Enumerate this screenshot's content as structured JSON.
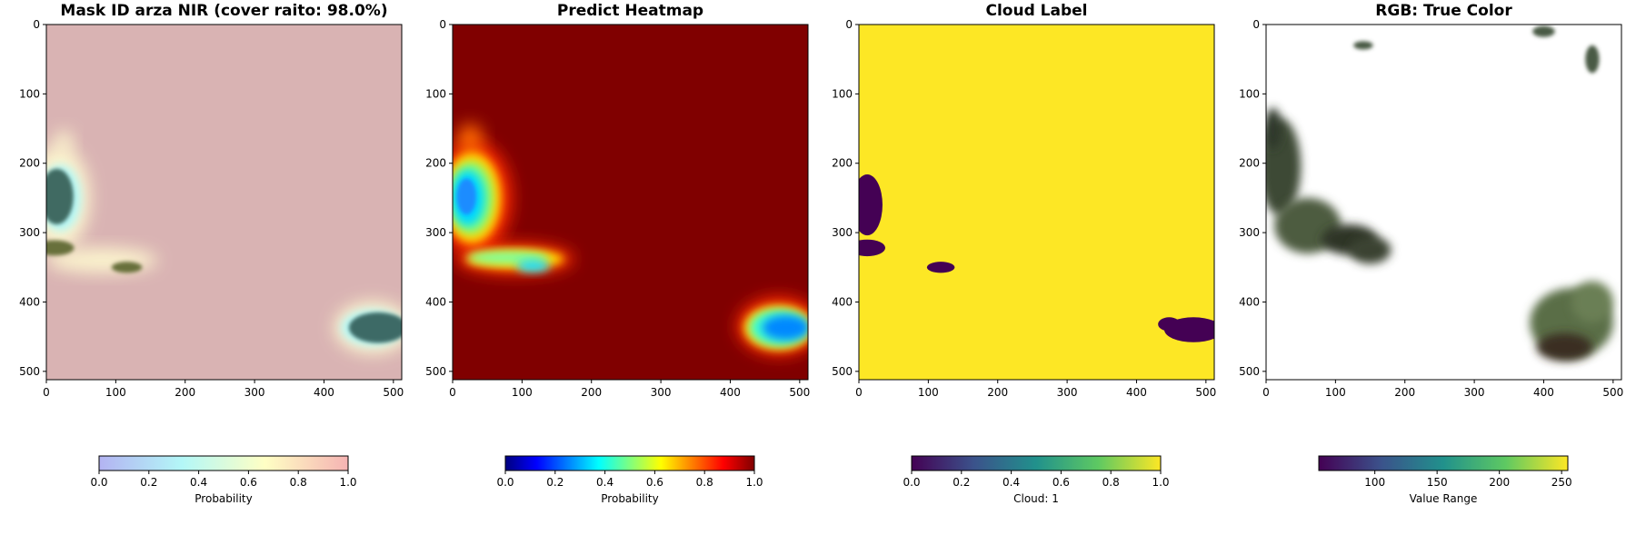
{
  "chart_data": [
    {
      "type": "heatmap",
      "title": "Mask ID arza NIR (cover raito: 98.0%)",
      "xlim": [
        0,
        512
      ],
      "ylim": [
        512,
        0
      ],
      "xticks": [
        "0",
        "100",
        "200",
        "300",
        "400",
        "500"
      ],
      "yticks": [
        "0",
        "100",
        "200",
        "300",
        "400",
        "500"
      ],
      "background_color": "#d9b3b3",
      "colorbar": {
        "label": "Probability",
        "range": [
          0,
          1
        ],
        "ticks": [
          "0.0",
          "0.2",
          "0.4",
          "0.6",
          "0.8",
          "1.0"
        ],
        "colors": [
          "#b3b3f2",
          "#b3f7f7",
          "#ffffc4",
          "#f5b3b3"
        ]
      },
      "regions": [
        {
          "name": "left-edge blob",
          "x": 15,
          "y": 248,
          "rx": 24,
          "ry": 40
        },
        {
          "name": "left strip",
          "x": 12,
          "y": 322,
          "rx": 28,
          "ry": 11
        },
        {
          "name": "small blob",
          "x": 116,
          "y": 350,
          "rx": 22,
          "ry": 8
        },
        {
          "name": "bottom-right blob",
          "x": 478,
          "y": 437,
          "rx": 42,
          "ry": 22
        }
      ]
    },
    {
      "type": "heatmap",
      "title": "Predict Heatmap",
      "xlim": [
        0,
        512
      ],
      "ylim": [
        512,
        0
      ],
      "xticks": [
        "0",
        "100",
        "200",
        "300",
        "400",
        "500"
      ],
      "yticks": [
        "0",
        "100",
        "200",
        "300",
        "400",
        "500"
      ],
      "background_color": "#800000",
      "colorbar": {
        "label": "Probability",
        "range": [
          0,
          1
        ],
        "ticks": [
          "0.0",
          "0.2",
          "0.4",
          "0.6",
          "0.8",
          "1.0"
        ],
        "colors": [
          "#00007f",
          "#0000ff",
          "#007fff",
          "#00ffff",
          "#7fff7f",
          "#ffff00",
          "#ff7f00",
          "#ff0000",
          "#7f0000"
        ]
      }
    },
    {
      "type": "heatmap",
      "title": "Cloud Label",
      "xlim": [
        0,
        512
      ],
      "ylim": [
        512,
        0
      ],
      "xticks": [
        "0",
        "100",
        "200",
        "300",
        "400",
        "500"
      ],
      "yticks": [
        "0",
        "100",
        "200",
        "300",
        "400",
        "500"
      ],
      "background_color": "#fde725",
      "region_color": "#440154",
      "colorbar": {
        "label": "Cloud: 1",
        "range": [
          0,
          1
        ],
        "ticks": [
          "0.0",
          "0.2",
          "0.4",
          "0.6",
          "0.8",
          "1.0"
        ],
        "colors": [
          "#440154",
          "#3b528b",
          "#21918c",
          "#5ec962",
          "#fde725"
        ]
      }
    },
    {
      "type": "heatmap",
      "title": "RGB: True Color",
      "xlim": [
        0,
        512
      ],
      "ylim": [
        512,
        0
      ],
      "xticks": [
        "0",
        "100",
        "200",
        "300",
        "400",
        "500"
      ],
      "yticks": [
        "0",
        "100",
        "200",
        "300",
        "400",
        "500"
      ],
      "background_color": "#ffffff",
      "colorbar": {
        "label": "Value Range",
        "range": [
          55,
          255
        ],
        "ticks": [
          "100",
          "150",
          "200",
          "250"
        ],
        "colors": [
          "#440154",
          "#3b528b",
          "#21918c",
          "#5ec962",
          "#fde725"
        ]
      }
    }
  ]
}
